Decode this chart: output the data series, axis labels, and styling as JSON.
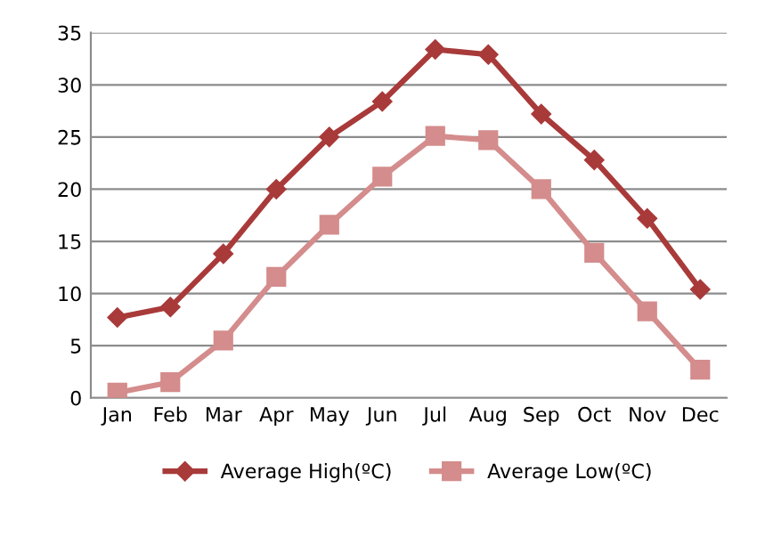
{
  "chart_data": {
    "type": "line",
    "categories": [
      "Jan",
      "Feb",
      "Mar",
      "Apr",
      "May",
      "Jun",
      "Jul",
      "Aug",
      "Sep",
      "Oct",
      "Nov",
      "Dec"
    ],
    "series": [
      {
        "name": "Average High(ºC)",
        "color": "#a93a3a",
        "marker": "diamond",
        "values": [
          7.7,
          8.7,
          13.8,
          20.0,
          25.0,
          28.4,
          33.4,
          32.9,
          27.2,
          22.8,
          17.2,
          10.4
        ]
      },
      {
        "name": "Average Low(ºC)",
        "color": "#d48c8c",
        "marker": "square",
        "values": [
          0.5,
          1.5,
          5.5,
          11.6,
          16.6,
          21.2,
          25.1,
          24.7,
          20.0,
          13.9,
          8.3,
          2.7
        ]
      }
    ],
    "ylim": [
      0,
      35
    ],
    "yticks": [
      0,
      5,
      10,
      15,
      20,
      25,
      30,
      35
    ],
    "grid": "y",
    "legend": "bottom",
    "line_style": "solid"
  }
}
